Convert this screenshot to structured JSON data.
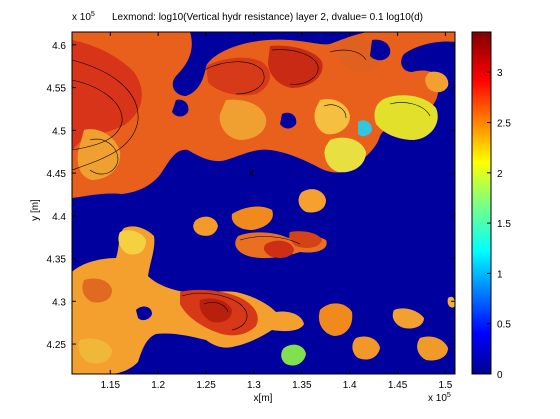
{
  "chart_data": {
    "type": "heatmap",
    "title": "Lexmond: log10(Vertical hydr resistance) layer 2, dvalue= 0.1 log10(d)",
    "xlabel": "x[m]",
    "ylabel": "y [m]",
    "x_exponent_label": "x 10",
    "x_exponent": "5",
    "y_exponent_label": "x 10",
    "y_exponent": "5",
    "xlim": [
      1.11,
      1.51
    ],
    "ylim": [
      4.215,
      4.615
    ],
    "x_ticks": [
      "1.15",
      "1.2",
      "1.25",
      "1.3",
      "1.35",
      "1.4",
      "1.45",
      "1.5"
    ],
    "x_tick_values": [
      1.15,
      1.2,
      1.25,
      1.3,
      1.35,
      1.4,
      1.45,
      1.5
    ],
    "y_ticks": [
      "4.25",
      "4.3",
      "4.35",
      "4.4",
      "4.45",
      "4.5",
      "4.55",
      "4.6"
    ],
    "y_tick_values": [
      4.25,
      4.3,
      4.35,
      4.4,
      4.45,
      4.5,
      4.55,
      4.6
    ],
    "colorbar": {
      "range": [
        0,
        3.4
      ],
      "ticks": [
        "0",
        "0.5",
        "1",
        "1.5",
        "2",
        "2.5",
        "3"
      ],
      "tick_values": [
        0,
        0.5,
        1,
        1.5,
        2,
        2.5,
        3
      ],
      "colormap": "jet"
    },
    "background_value": 0,
    "background_color": "#00009f",
    "annotation": "k",
    "patches": [
      {
        "region": "northwest block",
        "value": 2.9,
        "color": "#e8501a"
      },
      {
        "region": "north-central ridge",
        "value": 2.9,
        "color": "#e8501a"
      },
      {
        "region": "northeast islands",
        "value": 2.7,
        "color": "#f0801a"
      },
      {
        "region": "east arm",
        "value": 2.2,
        "color": "#e6e628"
      },
      {
        "region": "south-west body",
        "value": 2.6,
        "color": "#f09020"
      },
      {
        "region": "south-central peak",
        "value": 3.1,
        "color": "#d83418"
      },
      {
        "region": "mid islands",
        "value": 2.5,
        "color": "#f5a030"
      },
      {
        "region": "small cyan patch",
        "value": 1.2,
        "color": "#30c8e0"
      },
      {
        "region": "small green patch",
        "value": 1.8,
        "color": "#80e050"
      }
    ]
  }
}
